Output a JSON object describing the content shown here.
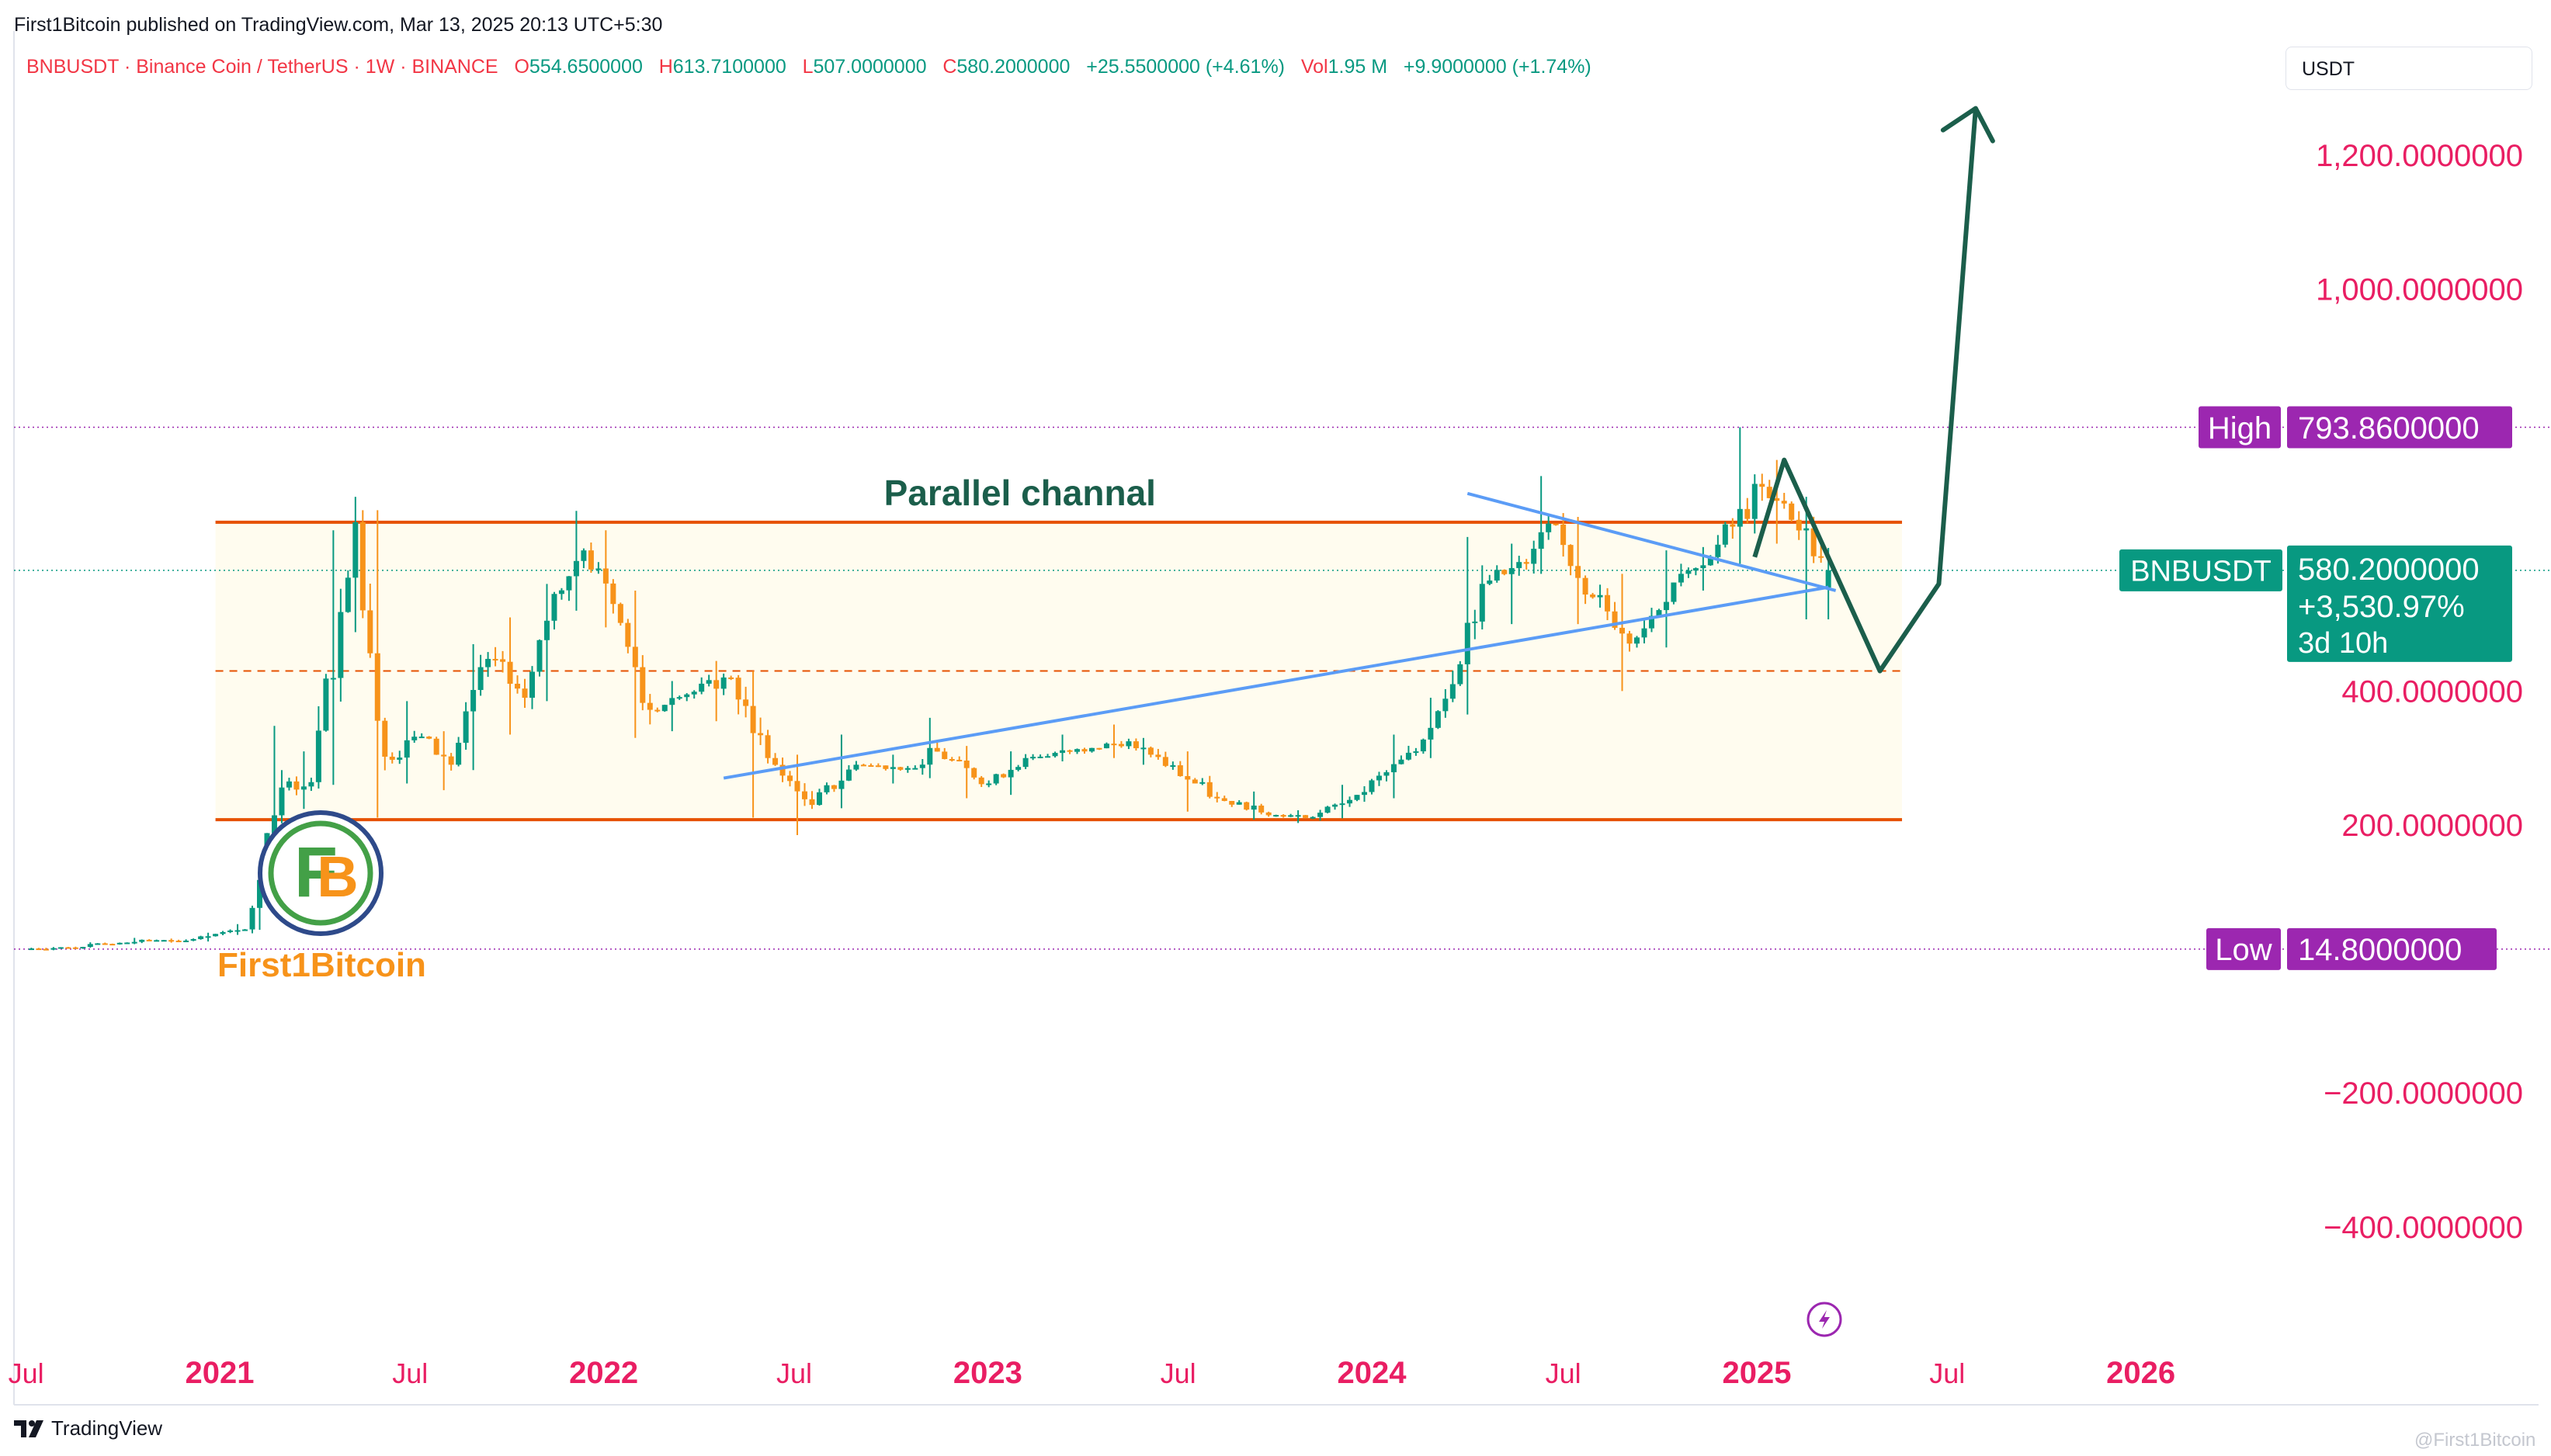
{
  "header": {
    "published": "First1Bitcoin published on TradingView.com, Mar 13, 2025 20:13 UTC+5:30",
    "symbol_line": "BNBUSDT · Binance Coin / TetherUS · 1W · BINANCE",
    "ohlc": {
      "o_label": "O",
      "o": "554.6500000",
      "h_label": "H",
      "h": "613.7100000",
      "l_label": "L",
      "l": "507.0000000",
      "c_label": "C",
      "c": "580.2000000",
      "change": "+25.5500000 (+4.61%)",
      "vol_label": "Vol",
      "vol": "1.95 M",
      "vol_change": "+9.9000000 (+1.74%)"
    },
    "unit": "USDT"
  },
  "colors": {
    "axis_text": "#e91e63",
    "up_candle": "#089981",
    "down_candle": "#f7931a",
    "channel_line": "#e65100",
    "channel_fill": "#fffcef",
    "trendline": "#5b9cf6",
    "projection": "#1b5e4b",
    "high_low_label": "#9c27b0",
    "price_label": "#089981"
  },
  "chart_data": {
    "type": "candlestick",
    "title": "",
    "interval": "1W",
    "x_axis_labels": [
      "Jul",
      "2021",
      "Jul",
      "2022",
      "Jul",
      "2023",
      "Jul",
      "2024",
      "Jul",
      "2025",
      "Jul",
      "2026"
    ],
    "y_axis_labels": [
      "1,200.0000000",
      "1,000.0000000",
      "400.0000000",
      "200.0000000",
      "−200.0000000",
      "−400.0000000"
    ],
    "y_range": [
      -550,
      1300
    ],
    "x_range": [
      "2020-06-08",
      "2026-06-30"
    ],
    "ohlc_series": [
      {
        "t": "2020-07-06",
        "o": 15.4,
        "h": 17.8,
        "l": 14.8,
        "c": 17.2
      },
      {
        "t": "2020-08-17",
        "o": 17.2,
        "h": 24.9,
        "l": 16.8,
        "c": 22.6
      },
      {
        "t": "2020-09-21",
        "o": 22.6,
        "h": 31.5,
        "l": 22.1,
        "c": 27.8
      },
      {
        "t": "2020-11-02",
        "o": 27.8,
        "h": 30.5,
        "l": 24.3,
        "c": 27.4
      },
      {
        "t": "2020-12-07",
        "o": 27.4,
        "h": 39.2,
        "l": 26.1,
        "c": 37.4
      },
      {
        "t": "2021-01-04",
        "o": 37.4,
        "h": 52.0,
        "l": 36.0,
        "c": 44.1
      },
      {
        "t": "2021-02-01",
        "o": 44.1,
        "h": 120.0,
        "l": 43.5,
        "c": 118.0
      },
      {
        "t": "2021-02-15",
        "o": 118.0,
        "h": 348.0,
        "l": 110.0,
        "c": 256.0
      },
      {
        "t": "2021-03-08",
        "o": 256.0,
        "h": 310.0,
        "l": 224.0,
        "c": 264.0
      },
      {
        "t": "2021-04-05",
        "o": 264.0,
        "h": 640.0,
        "l": 260.0,
        "c": 518.0
      },
      {
        "t": "2021-05-03",
        "o": 518.0,
        "h": 690.0,
        "l": 488.0,
        "c": 652.0
      },
      {
        "t": "2021-05-17",
        "o": 652.0,
        "h": 670.0,
        "l": 211.0,
        "c": 302.0
      },
      {
        "t": "2021-06-14",
        "o": 302.0,
        "h": 385.0,
        "l": 262.0,
        "c": 332.0
      },
      {
        "t": "2021-07-19",
        "o": 332.0,
        "h": 340.0,
        "l": 252.0,
        "c": 290.0
      },
      {
        "t": "2021-08-16",
        "o": 290.0,
        "h": 470.0,
        "l": 282.0,
        "c": 448.0
      },
      {
        "t": "2021-09-20",
        "o": 448.0,
        "h": 510.0,
        "l": 335.0,
        "c": 390.0
      },
      {
        "t": "2021-10-25",
        "o": 390.0,
        "h": 560.0,
        "l": 385.0,
        "c": 545.0
      },
      {
        "t": "2021-11-22",
        "o": 545.0,
        "h": 669.0,
        "l": 520.0,
        "c": 610.0
      },
      {
        "t": "2021-12-20",
        "o": 610.0,
        "h": 640.0,
        "l": 495.0,
        "c": 530.0
      },
      {
        "t": "2022-01-17",
        "o": 530.0,
        "h": 550.0,
        "l": 330.0,
        "c": 372.0
      },
      {
        "t": "2022-02-21",
        "o": 372.0,
        "h": 415.0,
        "l": 340.0,
        "c": 395.0
      },
      {
        "t": "2022-03-28",
        "o": 395.0,
        "h": 445.0,
        "l": 355.0,
        "c": 420.0
      },
      {
        "t": "2022-05-09",
        "o": 420.0,
        "h": 430.0,
        "l": 211.0,
        "c": 300.0
      },
      {
        "t": "2022-06-13",
        "o": 300.0,
        "h": 305.0,
        "l": 185.0,
        "c": 230.0
      },
      {
        "t": "2022-07-25",
        "o": 230.0,
        "h": 335.0,
        "l": 225.0,
        "c": 290.0
      },
      {
        "t": "2022-09-05",
        "o": 290.0,
        "h": 305.0,
        "l": 262.0,
        "c": 285.0
      },
      {
        "t": "2022-10-31",
        "o": 285.0,
        "h": 360.0,
        "l": 270.0,
        "c": 315.0
      },
      {
        "t": "2022-11-14",
        "o": 315.0,
        "h": 318.0,
        "l": 240.0,
        "c": 262.0
      },
      {
        "t": "2023-01-09",
        "o": 262.0,
        "h": 310.0,
        "l": 245.0,
        "c": 300.0
      },
      {
        "t": "2023-02-13",
        "o": 300.0,
        "h": 335.0,
        "l": 295.0,
        "c": 315.0
      },
      {
        "t": "2023-04-17",
        "o": 315.0,
        "h": 350.0,
        "l": 300.0,
        "c": 325.0
      },
      {
        "t": "2023-05-22",
        "o": 325.0,
        "h": 330.0,
        "l": 290.0,
        "c": 305.0
      },
      {
        "t": "2023-06-12",
        "o": 305.0,
        "h": 310.0,
        "l": 220.0,
        "c": 240.0
      },
      {
        "t": "2023-08-14",
        "o": 240.0,
        "h": 250.0,
        "l": 208.0,
        "c": 215.0
      },
      {
        "t": "2023-10-09",
        "o": 215.0,
        "h": 222.0,
        "l": 203.0,
        "c": 212.0
      },
      {
        "t": "2023-11-13",
        "o": 212.0,
        "h": 260.0,
        "l": 210.0,
        "c": 245.0
      },
      {
        "t": "2023-12-25",
        "o": 245.0,
        "h": 335.0,
        "l": 240.0,
        "c": 310.0
      },
      {
        "t": "2024-02-19",
        "o": 310.0,
        "h": 390.0,
        "l": 300.0,
        "c": 370.0
      },
      {
        "t": "2024-03-11",
        "o": 370.0,
        "h": 630.0,
        "l": 365.0,
        "c": 560.0
      },
      {
        "t": "2024-04-22",
        "o": 560.0,
        "h": 620.0,
        "l": 500.0,
        "c": 590.0
      },
      {
        "t": "2024-06-03",
        "o": 590.0,
        "h": 721.0,
        "l": 575.0,
        "c": 650.0
      },
      {
        "t": "2024-06-24",
        "o": 650.0,
        "h": 660.0,
        "l": 500.0,
        "c": 540.0
      },
      {
        "t": "2024-08-05",
        "o": 540.0,
        "h": 575.0,
        "l": 400.0,
        "c": 480.0
      },
      {
        "t": "2024-09-16",
        "o": 480.0,
        "h": 610.0,
        "l": 465.0,
        "c": 575.0
      },
      {
        "t": "2024-10-28",
        "o": 575.0,
        "h": 615.0,
        "l": 550.0,
        "c": 600.0
      },
      {
        "t": "2024-11-25",
        "o": 600.0,
        "h": 793.86,
        "l": 590.0,
        "c": 705.0
      },
      {
        "t": "2025-01-13",
        "o": 705.0,
        "h": 745.0,
        "l": 620.0,
        "c": 680.0
      },
      {
        "t": "2025-02-03",
        "o": 680.0,
        "h": 690.0,
        "l": 507.0,
        "c": 600.0
      },
      {
        "t": "2025-03-10",
        "o": 554.65,
        "h": 613.71,
        "l": 507.0,
        "c": 580.2
      }
    ],
    "annotations": {
      "channel_label": "Parallel channal",
      "channel_upper": {
        "from": "2020-12-28",
        "to": "2025-05-19",
        "price": 652
      },
      "channel_lower": {
        "from": "2020-12-28",
        "to": "2025-05-19",
        "price": 208
      },
      "channel_mid": {
        "from": "2020-12-28",
        "to": "2025-05-19",
        "price": 430
      },
      "rising_trendline": {
        "from": [
          "2022-04-25",
          270
        ],
        "to": [
          "2025-03-10",
          555
        ]
      },
      "falling_trendline": {
        "from": [
          "2024-04-01",
          695
        ],
        "to": [
          "2025-03-17",
          550
        ]
      },
      "projection_path": [
        [
          "2024-12-30",
          600
        ],
        [
          "2025-01-27",
          745
        ],
        [
          "2025-04-28",
          430
        ],
        [
          "2025-06-23",
          560
        ],
        [
          "2025-07-28",
          1270
        ]
      ],
      "high_line": 793.86,
      "low_line": 14.8,
      "current_line": 580.2
    },
    "price_labels": {
      "high_tag": "High",
      "high_value": "793.8600000",
      "low_tag": "Low",
      "low_value": "14.8000000",
      "symbol_tag": "BNBUSDT",
      "last_value": "580.2000000",
      "last_change": "+3,530.97%",
      "countdown": "3d 10h"
    }
  },
  "logo_text": "First1Bitcoin",
  "footer": {
    "brand": "TradingView",
    "watermark": "@First1Bitcoin"
  }
}
